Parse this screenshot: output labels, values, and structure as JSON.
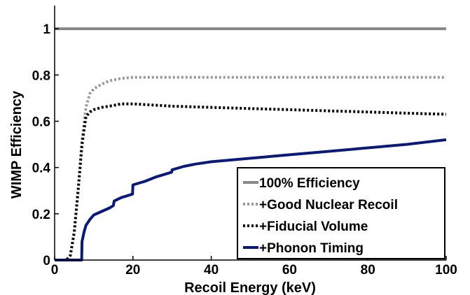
{
  "chart_data": {
    "type": "line",
    "title": "",
    "xlabel": "Recoil Energy (keV)",
    "ylabel": "WIMP Efficiency",
    "xlim": [
      0,
      100
    ],
    "ylim": [
      0,
      1.1
    ],
    "xticks": [
      0,
      20,
      40,
      60,
      80,
      100
    ],
    "yticks": [
      0,
      0.2,
      0.4,
      0.6,
      0.8,
      1
    ],
    "ytick_labels": [
      "0",
      "0.2",
      "0.4",
      "0.6",
      "0.8",
      "1"
    ],
    "grid": false,
    "legend_position": "bottom-right",
    "series": [
      {
        "name": "100% Efficiency",
        "color": "#888888",
        "style": "solid",
        "x": [
          0,
          100
        ],
        "y": [
          1,
          1
        ]
      },
      {
        "name": "+Good Nuclear Recoil",
        "color": "#999999",
        "style": "dotted",
        "x": [
          0,
          3,
          4,
          5,
          6,
          7,
          8,
          9,
          10,
          12,
          14,
          17,
          20,
          30,
          40,
          50,
          60,
          70,
          80,
          90,
          100
        ],
        "y": [
          0,
          0,
          0.02,
          0.12,
          0.3,
          0.52,
          0.66,
          0.72,
          0.74,
          0.76,
          0.775,
          0.785,
          0.79,
          0.79,
          0.79,
          0.79,
          0.79,
          0.79,
          0.79,
          0.79,
          0.79
        ]
      },
      {
        "name": "+Fiducial Volume",
        "color": "#000000",
        "style": "dotted",
        "x": [
          0,
          3,
          4,
          5,
          6,
          7,
          8,
          9,
          10,
          12,
          14,
          17,
          20,
          30,
          40,
          50,
          60,
          70,
          80,
          90,
          100
        ],
        "y": [
          0,
          0,
          0.02,
          0.12,
          0.3,
          0.5,
          0.62,
          0.64,
          0.65,
          0.66,
          0.665,
          0.675,
          0.675,
          0.665,
          0.66,
          0.655,
          0.65,
          0.645,
          0.64,
          0.635,
          0.63
        ]
      },
      {
        "name": "+Phonon Timing",
        "color": "#0a1a7a",
        "style": "solid",
        "x": [
          0,
          6.9,
          7,
          7.5,
          8,
          9,
          10,
          12,
          14,
          15,
          15.2,
          17,
          19.9,
          20,
          23,
          26,
          29.9,
          30,
          33,
          36,
          40,
          50,
          60,
          70,
          80,
          90,
          100
        ],
        "y": [
          0,
          0,
          0.08,
          0.12,
          0.15,
          0.175,
          0.195,
          0.21,
          0.225,
          0.235,
          0.255,
          0.27,
          0.285,
          0.325,
          0.34,
          0.36,
          0.38,
          0.39,
          0.405,
          0.415,
          0.425,
          0.44,
          0.455,
          0.47,
          0.485,
          0.5,
          0.52
        ]
      }
    ]
  }
}
